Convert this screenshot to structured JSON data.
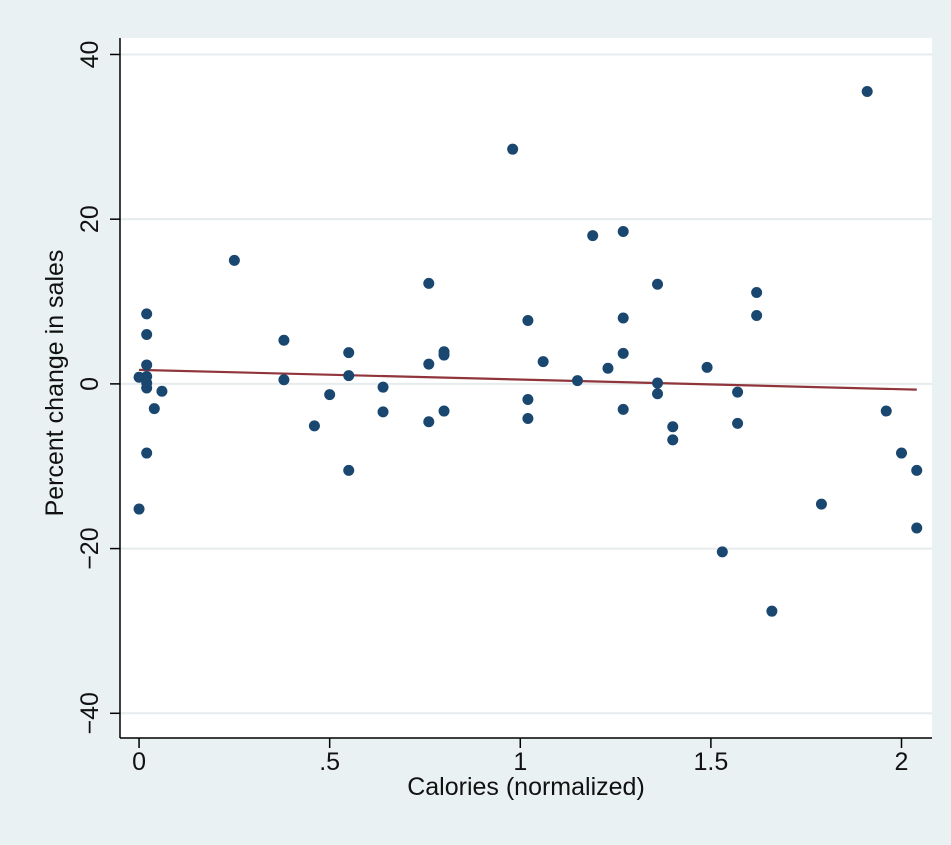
{
  "chart_data": {
    "type": "scatter",
    "xlabel": "Calories (normalized)",
    "ylabel": "Percent change in sales",
    "xlim": [
      -0.05,
      2.08
    ],
    "ylim": [
      -43,
      42
    ],
    "x_ticks": [
      0,
      0.5,
      1,
      1.5,
      2
    ],
    "x_tick_labels": [
      "0",
      ".5",
      "1",
      "1.5",
      "2"
    ],
    "y_ticks": [
      -40,
      -20,
      0,
      20,
      40
    ],
    "y_tick_labels": [
      "−40",
      "−20",
      "0",
      "20",
      "40"
    ],
    "grid": true,
    "legend": "none",
    "colors": {
      "background": "#eaf1f3",
      "plot_area": "#ffffff",
      "grid": "#e6ecee",
      "points": "#1a476f",
      "fit_line": "#90353b"
    },
    "points": [
      {
        "x": 0.0,
        "y": 0.8
      },
      {
        "x": 0.0,
        "y": -15.2
      },
      {
        "x": 0.02,
        "y": 8.5
      },
      {
        "x": 0.02,
        "y": 6.0
      },
      {
        "x": 0.02,
        "y": 2.3
      },
      {
        "x": 0.02,
        "y": 0.9
      },
      {
        "x": 0.02,
        "y": 0.1
      },
      {
        "x": 0.02,
        "y": -0.5
      },
      {
        "x": 0.02,
        "y": -8.4
      },
      {
        "x": 0.04,
        "y": -3.0
      },
      {
        "x": 0.06,
        "y": -0.9
      },
      {
        "x": 0.25,
        "y": 15.0
      },
      {
        "x": 0.38,
        "y": 5.3
      },
      {
        "x": 0.38,
        "y": 0.5
      },
      {
        "x": 0.46,
        "y": -5.1
      },
      {
        "x": 0.5,
        "y": -1.3
      },
      {
        "x": 0.55,
        "y": 3.8
      },
      {
        "x": 0.55,
        "y": 1.0
      },
      {
        "x": 0.55,
        "y": -10.5
      },
      {
        "x": 0.64,
        "y": -0.4
      },
      {
        "x": 0.64,
        "y": -3.4
      },
      {
        "x": 0.76,
        "y": 12.2
      },
      {
        "x": 0.76,
        "y": 2.4
      },
      {
        "x": 0.76,
        "y": -4.6
      },
      {
        "x": 0.8,
        "y": 3.9
      },
      {
        "x": 0.8,
        "y": 3.5
      },
      {
        "x": 0.8,
        "y": -3.3
      },
      {
        "x": 0.98,
        "y": 28.5
      },
      {
        "x": 1.02,
        "y": 7.7
      },
      {
        "x": 1.02,
        "y": -1.9
      },
      {
        "x": 1.02,
        "y": -4.2
      },
      {
        "x": 1.06,
        "y": 2.7
      },
      {
        "x": 1.15,
        "y": 0.4
      },
      {
        "x": 1.19,
        "y": 18.0
      },
      {
        "x": 1.23,
        "y": 1.9
      },
      {
        "x": 1.27,
        "y": 18.5
      },
      {
        "x": 1.27,
        "y": 8.0
      },
      {
        "x": 1.27,
        "y": 3.7
      },
      {
        "x": 1.27,
        "y": -3.1
      },
      {
        "x": 1.36,
        "y": 12.1
      },
      {
        "x": 1.36,
        "y": 0.1
      },
      {
        "x": 1.36,
        "y": -1.2
      },
      {
        "x": 1.4,
        "y": -5.2
      },
      {
        "x": 1.4,
        "y": -6.8
      },
      {
        "x": 1.49,
        "y": 2.0
      },
      {
        "x": 1.53,
        "y": -20.4
      },
      {
        "x": 1.57,
        "y": -1.0
      },
      {
        "x": 1.57,
        "y": -4.8
      },
      {
        "x": 1.62,
        "y": 11.1
      },
      {
        "x": 1.62,
        "y": 8.3
      },
      {
        "x": 1.66,
        "y": -27.6
      },
      {
        "x": 1.79,
        "y": -14.6
      },
      {
        "x": 1.91,
        "y": 35.5
      },
      {
        "x": 1.96,
        "y": -3.3
      },
      {
        "x": 2.0,
        "y": -8.4
      },
      {
        "x": 2.04,
        "y": -10.5
      },
      {
        "x": 2.04,
        "y": -17.5
      }
    ],
    "fit_line": {
      "x": [
        0.0,
        2.04
      ],
      "y": [
        1.7,
        -0.7
      ]
    }
  }
}
